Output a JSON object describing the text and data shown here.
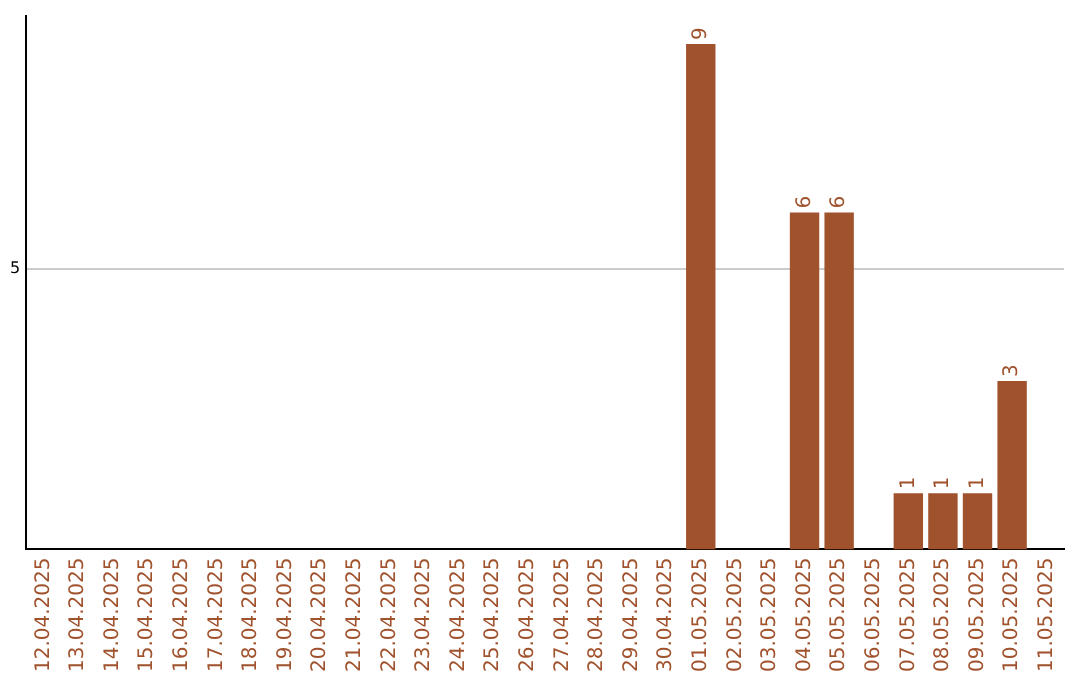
{
  "chart_data": {
    "type": "bar",
    "categories": [
      "12.04.2025",
      "13.04.2025",
      "14.04.2025",
      "15.04.2025",
      "16.04.2025",
      "17.04.2025",
      "18.04.2025",
      "19.04.2025",
      "20.04.2025",
      "21.04.2025",
      "22.04.2025",
      "23.04.2025",
      "24.04.2025",
      "25.04.2025",
      "26.04.2025",
      "27.04.2025",
      "28.04.2025",
      "29.04.2025",
      "30.04.2025",
      "01.05.2025",
      "02.05.2025",
      "03.05.2025",
      "04.05.2025",
      "05.05.2025",
      "06.05.2025",
      "07.05.2025",
      "08.05.2025",
      "09.05.2025",
      "10.05.2025",
      "11.05.2025"
    ],
    "values": [
      null,
      null,
      null,
      null,
      null,
      null,
      null,
      null,
      null,
      null,
      null,
      null,
      null,
      null,
      null,
      null,
      null,
      null,
      null,
      9,
      null,
      null,
      6,
      6,
      null,
      1,
      1,
      1,
      3,
      null
    ],
    "data_labels": true,
    "color": "#a0522d",
    "ylim": [
      0,
      9.5
    ],
    "yticks": [
      5
    ],
    "grid": "y"
  }
}
